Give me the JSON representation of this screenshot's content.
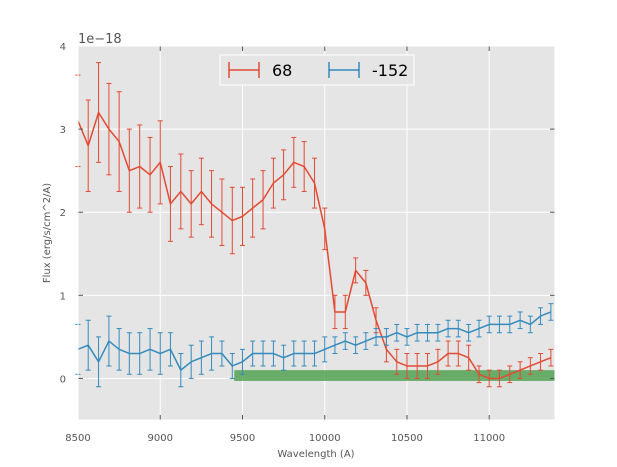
{
  "chart_data": {
    "type": "line",
    "title": "",
    "xlabel": "Wavelength (A)",
    "ylabel": "Flux (erg/s/cm^2/A)",
    "offset_label": "1e−18",
    "xlim": [
      8500,
      11400
    ],
    "ylim": [
      -0.5,
      4.0
    ],
    "y_scale_exponent": -18,
    "grid": true,
    "background": "#e5e5e5",
    "xticks": [
      8500,
      9000,
      9500,
      10000,
      10500,
      11000
    ],
    "yticks": [
      0,
      1,
      2,
      3,
      4
    ],
    "legend_position": "top-center",
    "series": [
      {
        "name": "68",
        "color": "#e24a33",
        "x": [
          8500,
          8562,
          8625,
          8688,
          8750,
          8812,
          8875,
          8938,
          9000,
          9062,
          9125,
          9188,
          9250,
          9312,
          9375,
          9438,
          9500,
          9562,
          9625,
          9688,
          9750,
          9812,
          9875,
          9938,
          10000,
          10062,
          10125,
          10188,
          10250,
          10312,
          10375,
          10438,
          10500,
          10562,
          10625,
          10688,
          10750,
          10812,
          10875,
          10938,
          11000,
          11062,
          11125,
          11188,
          11250,
          11312,
          11375
        ],
        "y": [
          3.1,
          2.8,
          3.2,
          3.0,
          2.85,
          2.5,
          2.55,
          2.45,
          2.6,
          2.1,
          2.25,
          2.1,
          2.25,
          2.1,
          2.0,
          1.9,
          1.95,
          2.05,
          2.15,
          2.35,
          2.45,
          2.6,
          2.55,
          2.35,
          1.8,
          0.8,
          0.8,
          1.3,
          1.15,
          0.7,
          0.35,
          0.2,
          0.15,
          0.15,
          0.15,
          0.2,
          0.3,
          0.3,
          0.25,
          0.05,
          0.0,
          0.0,
          0.05,
          0.1,
          0.15,
          0.2,
          0.25
        ],
        "err": [
          0.55,
          0.55,
          0.6,
          0.55,
          0.6,
          0.5,
          0.5,
          0.45,
          0.5,
          0.45,
          0.45,
          0.4,
          0.4,
          0.4,
          0.4,
          0.4,
          0.35,
          0.35,
          0.35,
          0.3,
          0.3,
          0.3,
          0.3,
          0.3,
          0.25,
          0.2,
          0.2,
          0.15,
          0.15,
          0.15,
          0.15,
          0.15,
          0.15,
          0.15,
          0.15,
          0.15,
          0.15,
          0.15,
          0.15,
          0.1,
          0.1,
          0.1,
          0.1,
          0.1,
          0.1,
          0.1,
          0.1
        ]
      },
      {
        "name": "-152",
        "color": "#348abd",
        "x": [
          8500,
          8562,
          8625,
          8688,
          8750,
          8812,
          8875,
          8938,
          9000,
          9062,
          9125,
          9188,
          9250,
          9312,
          9375,
          9438,
          9500,
          9562,
          9625,
          9688,
          9750,
          9812,
          9875,
          9938,
          10000,
          10062,
          10125,
          10188,
          10250,
          10312,
          10375,
          10438,
          10500,
          10562,
          10625,
          10688,
          10750,
          10812,
          10875,
          10938,
          11000,
          11062,
          11125,
          11188,
          11250,
          11312,
          11375
        ],
        "y": [
          0.35,
          0.4,
          0.2,
          0.45,
          0.35,
          0.3,
          0.3,
          0.35,
          0.3,
          0.35,
          0.1,
          0.2,
          0.25,
          0.3,
          0.3,
          0.15,
          0.2,
          0.3,
          0.3,
          0.3,
          0.25,
          0.3,
          0.3,
          0.3,
          0.35,
          0.4,
          0.45,
          0.4,
          0.45,
          0.5,
          0.5,
          0.55,
          0.5,
          0.55,
          0.55,
          0.55,
          0.6,
          0.6,
          0.55,
          0.6,
          0.65,
          0.65,
          0.65,
          0.7,
          0.65,
          0.75,
          0.8
        ],
        "err": [
          0.3,
          0.3,
          0.3,
          0.3,
          0.25,
          0.25,
          0.25,
          0.25,
          0.25,
          0.2,
          0.2,
          0.2,
          0.2,
          0.2,
          0.15,
          0.15,
          0.15,
          0.15,
          0.15,
          0.15,
          0.15,
          0.15,
          0.15,
          0.15,
          0.15,
          0.1,
          0.1,
          0.1,
          0.1,
          0.1,
          0.1,
          0.1,
          0.1,
          0.1,
          0.1,
          0.1,
          0.1,
          0.1,
          0.1,
          0.1,
          0.1,
          0.1,
          0.1,
          0.1,
          0.1,
          0.1,
          0.1
        ]
      }
    ],
    "band": {
      "x_range": [
        9450,
        11400
      ],
      "y_range": [
        -0.03,
        0.1
      ],
      "color": "#4a9e4a",
      "opacity": 0.8
    }
  }
}
